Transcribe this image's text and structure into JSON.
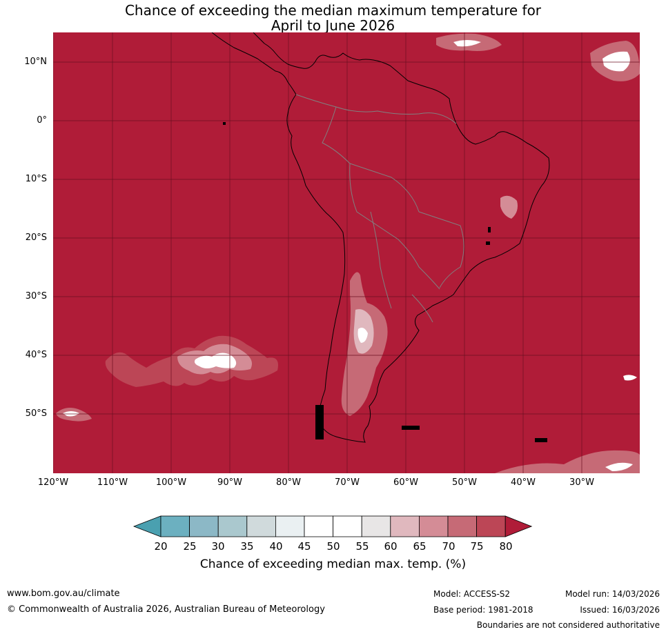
{
  "header": {
    "title_line1": "Chance of exceeding the median maximum temperature for",
    "title_line2": "April to June 2026"
  },
  "map": {
    "lat_labels": [
      "10°N",
      "0°",
      "10°S",
      "20°S",
      "30°S",
      "40°S",
      "50°S"
    ],
    "lon_labels": [
      "120°W",
      "110°W",
      "100°W",
      "90°W",
      "80°W",
      "70°W",
      "60°W",
      "50°W",
      "40°W",
      "30°W"
    ],
    "dominant_category": "above 80%",
    "colors": {
      "background_fill": "#b01c38",
      "gridline": "#6b0f20",
      "coastline": "#000000",
      "border": "#808080"
    }
  },
  "colorbar": {
    "ticks": [
      "20",
      "25",
      "30",
      "35",
      "40",
      "45",
      "50",
      "55",
      "60",
      "65",
      "70",
      "75",
      "80"
    ],
    "colors": [
      "#4aa0b0",
      "#6cb0c0",
      "#8cb8c6",
      "#aac8ce",
      "#d0dadc",
      "#eaf0f2",
      "#ffffff",
      "#ffffff",
      "#e8e6e6",
      "#e0b8be",
      "#d48c96",
      "#c66a76",
      "#bc4656",
      "#b01c38"
    ],
    "label": "Chance of exceeding median max. temp. (%)"
  },
  "footer": {
    "url": "www.bom.gov.au/climate",
    "copyright": "© Commonwealth of Australia 2026, Australian Bureau of Meteorology",
    "model": "Model: ACCESS-S2",
    "model_run": "Model run: 14/03/2026",
    "base_period": "Base period: 1981-2018",
    "issued": "Issued: 16/03/2026",
    "disclaimer": "Boundaries are not considered authoritative"
  }
}
